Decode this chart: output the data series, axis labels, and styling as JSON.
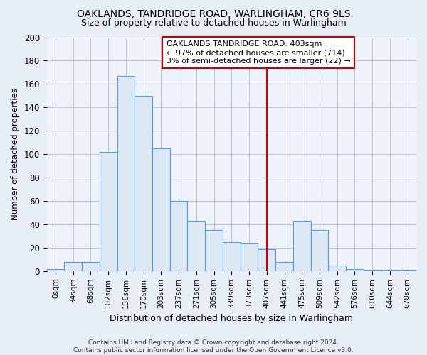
{
  "title": "OAKLANDS, TANDRIDGE ROAD, WARLINGHAM, CR6 9LS",
  "subtitle": "Size of property relative to detached houses in Warlingham",
  "xlabel": "Distribution of detached houses by size in Warlingham",
  "ylabel": "Number of detached properties",
  "categories": [
    "0sqm",
    "34sqm",
    "68sqm",
    "102sqm",
    "136sqm",
    "170sqm",
    "203sqm",
    "237sqm",
    "271sqm",
    "305sqm",
    "339sqm",
    "373sqm",
    "407sqm",
    "441sqm",
    "475sqm",
    "509sqm",
    "542sqm",
    "576sqm",
    "610sqm",
    "644sqm",
    "678sqm"
  ],
  "values": [
    2,
    8,
    8,
    102,
    167,
    150,
    105,
    60,
    43,
    35,
    25,
    24,
    19,
    8,
    43,
    35,
    5,
    2,
    1,
    1,
    1
  ],
  "bar_facecolor": "#dce9f5",
  "bar_edgecolor": "#5b9bd5",
  "marker_line_index": 12,
  "marker_color": "#cc0000",
  "annotation_text": "OAKLANDS TANDRIDGE ROAD: 403sqm\n← 97% of detached houses are smaller (714)\n3% of semi-detached houses are larger (22) →",
  "annotation_box_color": "#ffffff",
  "annotation_border_color": "#cc0000",
  "ylim": [
    0,
    200
  ],
  "yticks": [
    0,
    20,
    40,
    60,
    80,
    100,
    120,
    140,
    160,
    180,
    200
  ],
  "background_color": "#e8eef8",
  "plot_bg_color": "#edf2fb",
  "footer": "Contains HM Land Registry data © Crown copyright and database right 2024.\nContains public sector information licensed under the Open Government Licence v3.0.",
  "title_fontsize": 10,
  "subtitle_fontsize": 9,
  "annotation_fontsize": 8
}
